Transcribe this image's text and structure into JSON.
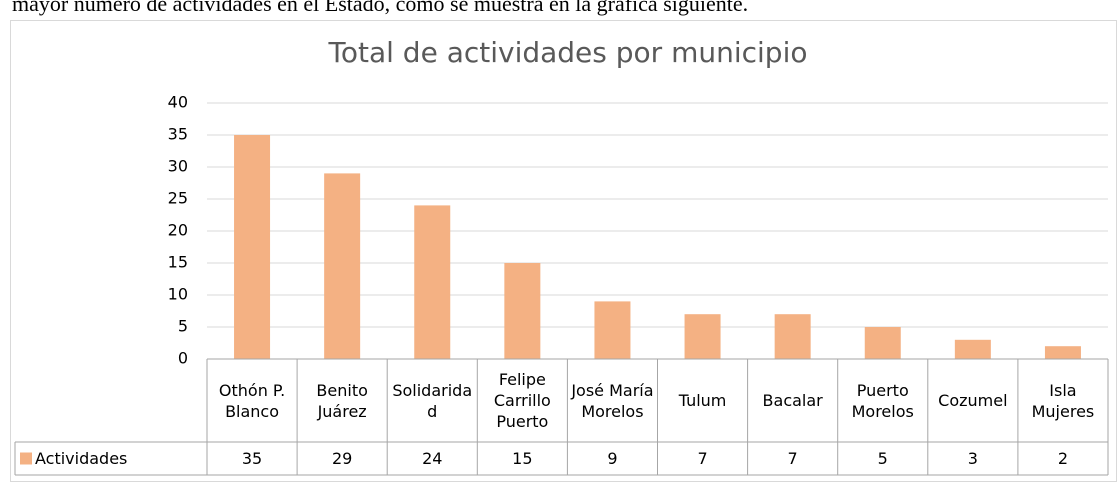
{
  "intro_text": "mayor número de actividades en el Estado, como se muestra en la gráfica siguiente.",
  "chart_data": {
    "type": "bar",
    "title": "Total de actividades por municipio",
    "categories": [
      "Othón P. Blanco",
      "Benito Juárez",
      "Solidaridad",
      "Felipe Carrillo Puerto",
      "José María Morelos",
      "Tulum",
      "Bacalar",
      "Puerto Morelos",
      "Cozumel",
      "Isla Mujeres"
    ],
    "series": [
      {
        "name": "Actividades",
        "color": "#f4b183",
        "values": [
          35,
          29,
          24,
          15,
          9,
          7,
          7,
          5,
          3,
          2
        ]
      }
    ],
    "ylim": [
      0,
      40
    ],
    "yticks": [
      0,
      5,
      10,
      15,
      20,
      25,
      30,
      35,
      40
    ],
    "grid": true,
    "data_table": true
  }
}
